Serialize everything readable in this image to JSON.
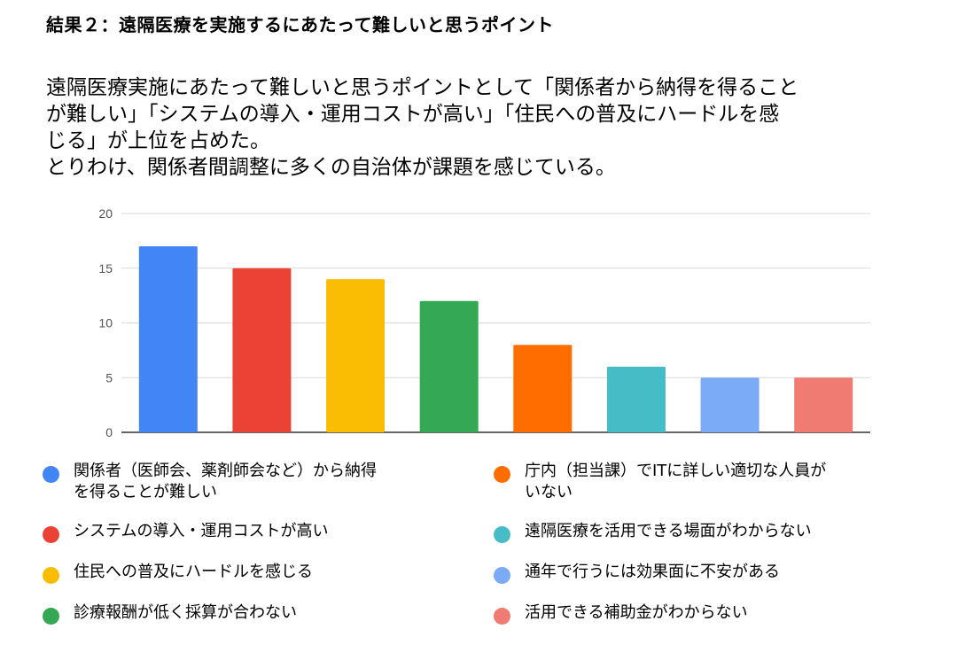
{
  "heading": "結果２：遠隔医療を実施するにあたって難しいと思うポイント",
  "description": [
    "遠隔医療実施にあたって難しいと思うポイントとして「関係者から納得を得ること",
    "が難しい」「システムの導入・運用コストが高い」「住民への普及にハードルを感",
    "じる」が上位を占めた。",
    "とりわけ、関係者間調整に多くの自治体が課題を感じている。"
  ],
  "chart_data": {
    "type": "bar",
    "categories": [
      "関係者（医師会、薬剤師会など）から納得を得ることが難しい",
      "システムの導入・運用コストが高い",
      "住民への普及にハードルを感じる",
      "診療報酬が低く採算が合わない",
      "庁内（担当課）でITに詳しい適切な人員がいない",
      "遠隔医療を活用できる場面がわからない",
      "通年で行うには効果面に不安がある",
      "活用できる補助金がわからない"
    ],
    "values": [
      17,
      15,
      14,
      12,
      8,
      6,
      5,
      5
    ],
    "colors": [
      "#4285f4",
      "#ea4335",
      "#fbbc04",
      "#34a853",
      "#ff6d01",
      "#46bdc6",
      "#7baaf7",
      "#f07b72"
    ],
    "ylim": [
      0,
      20
    ],
    "yticks": [
      "0",
      "5",
      "10",
      "15",
      "20"
    ],
    "grid": true,
    "legend_position": "bottom",
    "legend": [
      {
        "lines": [
          "関係者（医師会、薬剤師会など）から納得",
          "を得ることが難しい"
        ]
      },
      {
        "lines": [
          "システムの導入・運用コストが高い"
        ]
      },
      {
        "lines": [
          "住民への普及にハードルを感じる"
        ]
      },
      {
        "lines": [
          "診療報酬が低く採算が合わない"
        ]
      },
      {
        "lines": [
          "庁内（担当課）でITに詳しい適切な人員が",
          "いない"
        ]
      },
      {
        "lines": [
          "遠隔医療を活用できる場面がわからない"
        ]
      },
      {
        "lines": [
          "通年で行うには効果面に不安がある"
        ]
      },
      {
        "lines": [
          "活用できる補助金がわからない"
        ]
      }
    ]
  }
}
